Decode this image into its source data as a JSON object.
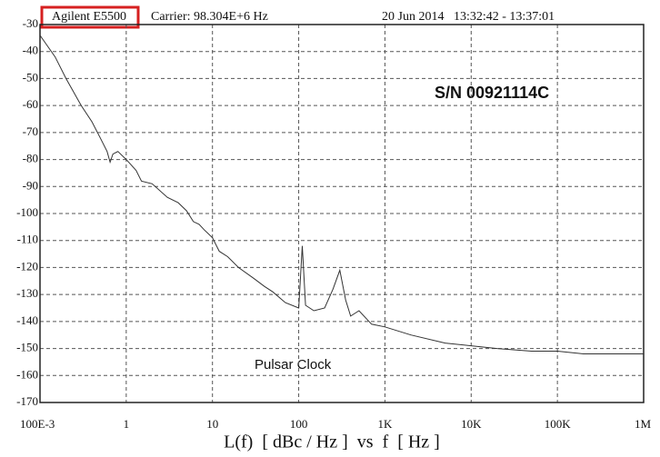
{
  "chart_data": {
    "type": "line",
    "instrument": "Agilent E5500",
    "carrier": "Carrier: 98.304E+6 Hz",
    "timestamp": "20 Jun 2014   13:32:42 - 13:37:01",
    "serial": "S/N 00921114C",
    "annotation": "Pulsar Clock",
    "x_label": "L(f)  [ dBc / Hz ]  vs  f  [ Hz ]",
    "xscale": "log",
    "grid": true,
    "color": "#333333",
    "xlim": [
      0.1,
      1000000
    ],
    "ylim": [
      -170,
      -30
    ],
    "xticks": [
      {
        "value": 0.1,
        "label": "100E-3"
      },
      1,
      10,
      100,
      {
        "value": 1000,
        "label": "1K"
      },
      {
        "value": 10000,
        "label": "10K"
      },
      {
        "value": 100000,
        "label": "100K"
      },
      {
        "value": 1000000,
        "label": "1M"
      }
    ],
    "yticks": [
      -30,
      -40,
      -50,
      -60,
      -70,
      -80,
      -90,
      -100,
      -110,
      -120,
      -130,
      -140,
      -150,
      -160,
      -170
    ],
    "x": [
      0.1,
      0.15,
      0.2,
      0.3,
      0.4,
      0.5,
      0.6,
      0.65,
      0.7,
      0.8,
      1,
      1.3,
      1.5,
      2,
      3,
      4,
      5,
      6,
      7,
      8,
      10,
      12,
      15,
      20,
      30,
      40,
      50,
      70,
      100,
      110,
      120,
      150,
      200,
      250,
      300,
      350,
      400,
      500,
      700,
      1000,
      2000,
      5000,
      10000,
      20000,
      50000,
      100000,
      200000,
      500000,
      1000000
    ],
    "values": [
      -34,
      -42,
      -50,
      -60,
      -66,
      -72,
      -77,
      -81,
      -78,
      -77,
      -80,
      -84,
      -88,
      -89,
      -94,
      -96,
      -99,
      -103,
      -104,
      -106,
      -109,
      -114,
      -116,
      -120,
      -124,
      -127,
      -129,
      -133,
      -135,
      -112,
      -134,
      -136,
      -135,
      -128,
      -121,
      -132,
      -138,
      -136,
      -141,
      -142,
      -145,
      -148,
      -149,
      -150,
      -151,
      -151,
      -152,
      -152,
      -152
    ]
  }
}
